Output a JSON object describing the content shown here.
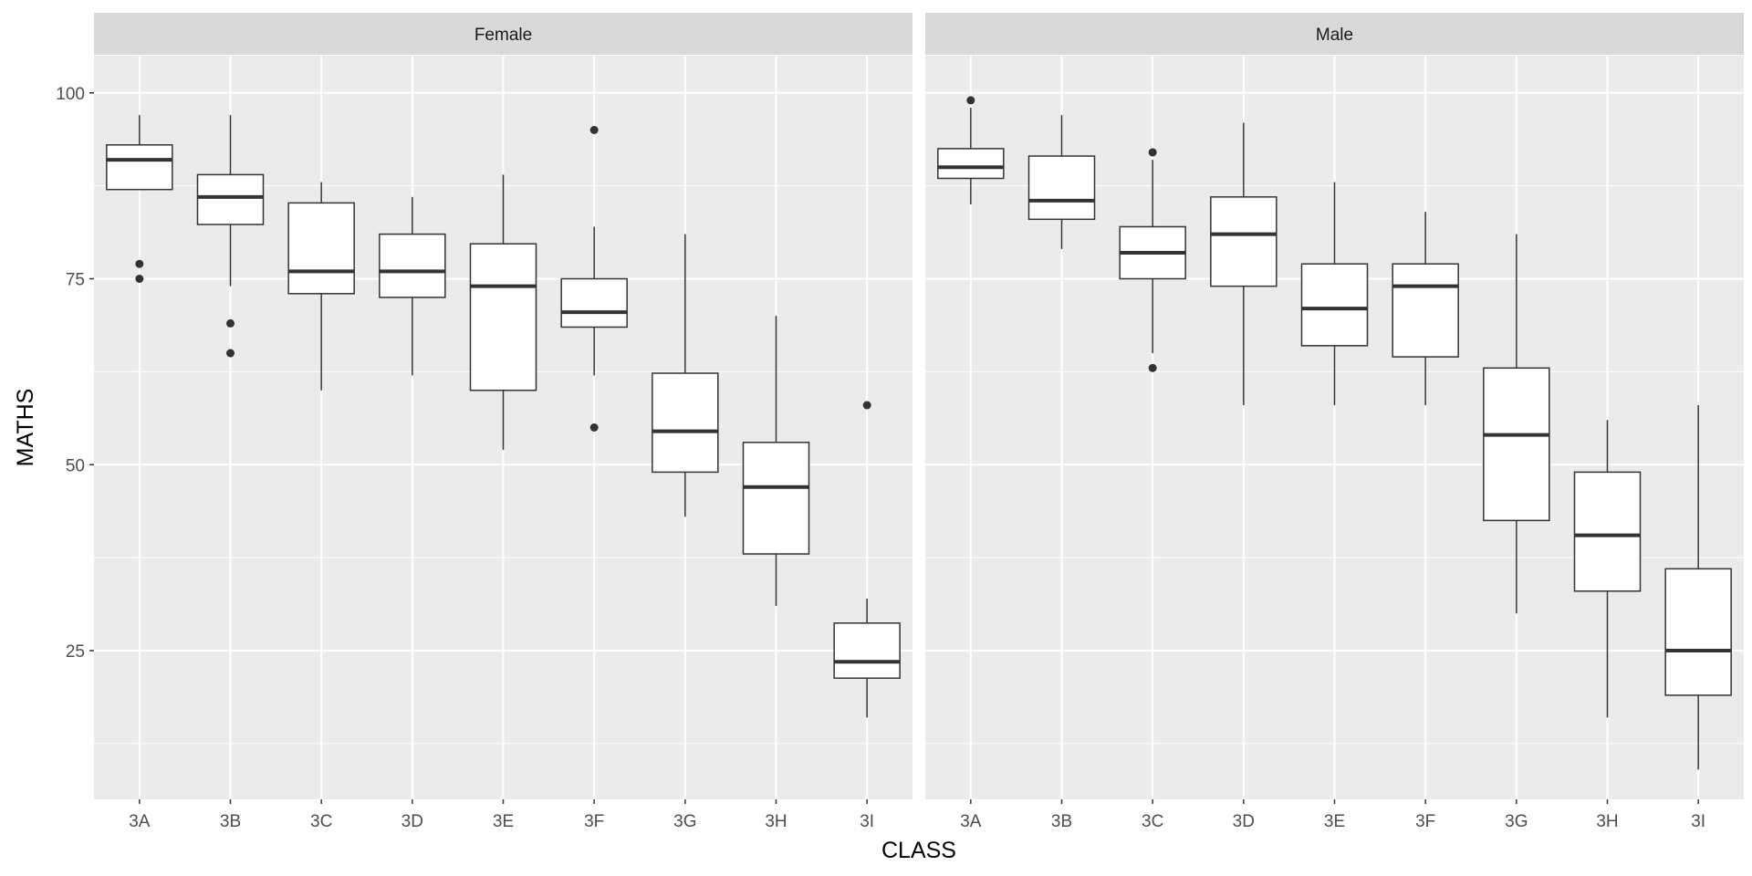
{
  "chart_data": {
    "type": "box",
    "xlabel": "CLASS",
    "ylabel": "MATHS",
    "ylim": [
      5,
      105
    ],
    "yticks": [
      25,
      50,
      75,
      100
    ],
    "categories": [
      "3A",
      "3B",
      "3C",
      "3D",
      "3E",
      "3F",
      "3G",
      "3H",
      "3I"
    ],
    "grid": true,
    "colors": {
      "panel": "#ebebeb",
      "strip": "#d9d9d9",
      "grid": "#ffffff",
      "box_fill": "#ffffff",
      "box_line": "#333333"
    },
    "facets": [
      {
        "label": "Female",
        "boxes": [
          {
            "category": "3A",
            "lower": 87,
            "q1": 87,
            "median": 91,
            "q3": 93,
            "upper": 97,
            "outliers": [
              77,
              75
            ]
          },
          {
            "category": "3B",
            "lower": 74,
            "q1": 82.3,
            "median": 86,
            "q3": 89,
            "upper": 97,
            "outliers": [
              69,
              65
            ]
          },
          {
            "category": "3C",
            "lower": 60,
            "q1": 73,
            "median": 76,
            "q3": 85.2,
            "upper": 88,
            "outliers": []
          },
          {
            "category": "3D",
            "lower": 62,
            "q1": 72.5,
            "median": 76,
            "q3": 81,
            "upper": 86,
            "outliers": []
          },
          {
            "category": "3E",
            "lower": 52,
            "q1": 60,
            "median": 74,
            "q3": 79.7,
            "upper": 89,
            "outliers": []
          },
          {
            "category": "3F",
            "lower": 62,
            "q1": 68.5,
            "median": 70.5,
            "q3": 75,
            "upper": 82,
            "outliers": [
              95,
              55
            ]
          },
          {
            "category": "3G",
            "lower": 43,
            "q1": 49,
            "median": 54.5,
            "q3": 62.3,
            "upper": 81,
            "outliers": []
          },
          {
            "category": "3H",
            "lower": 31,
            "q1": 38,
            "median": 47,
            "q3": 53,
            "upper": 70,
            "outliers": []
          },
          {
            "category": "3I",
            "lower": 16,
            "q1": 21.3,
            "median": 23.5,
            "q3": 28.7,
            "upper": 32,
            "outliers": [
              58
            ]
          }
        ]
      },
      {
        "label": "Male",
        "boxes": [
          {
            "category": "3A",
            "lower": 85,
            "q1": 88.5,
            "median": 90,
            "q3": 92.5,
            "upper": 98,
            "outliers": [
              99
            ]
          },
          {
            "category": "3B",
            "lower": 79,
            "q1": 83,
            "median": 85.5,
            "q3": 91.5,
            "upper": 97,
            "outliers": []
          },
          {
            "category": "3C",
            "lower": 65,
            "q1": 75,
            "median": 78.5,
            "q3": 82,
            "upper": 91,
            "outliers": [
              92,
              63
            ]
          },
          {
            "category": "3D",
            "lower": 58,
            "q1": 74,
            "median": 81,
            "q3": 86,
            "upper": 96,
            "outliers": []
          },
          {
            "category": "3E",
            "lower": 58,
            "q1": 66,
            "median": 71,
            "q3": 77,
            "upper": 88,
            "outliers": []
          },
          {
            "category": "3F",
            "lower": 58,
            "q1": 64.5,
            "median": 74,
            "q3": 77,
            "upper": 84,
            "outliers": []
          },
          {
            "category": "3G",
            "lower": 30,
            "q1": 42.5,
            "median": 54,
            "q3": 63,
            "upper": 81,
            "outliers": []
          },
          {
            "category": "3H",
            "lower": 16,
            "q1": 33,
            "median": 40.5,
            "q3": 49,
            "upper": 56,
            "outliers": []
          },
          {
            "category": "3I",
            "lower": 9,
            "q1": 19,
            "median": 25,
            "q3": 36,
            "upper": 58,
            "outliers": []
          }
        ]
      }
    ]
  }
}
